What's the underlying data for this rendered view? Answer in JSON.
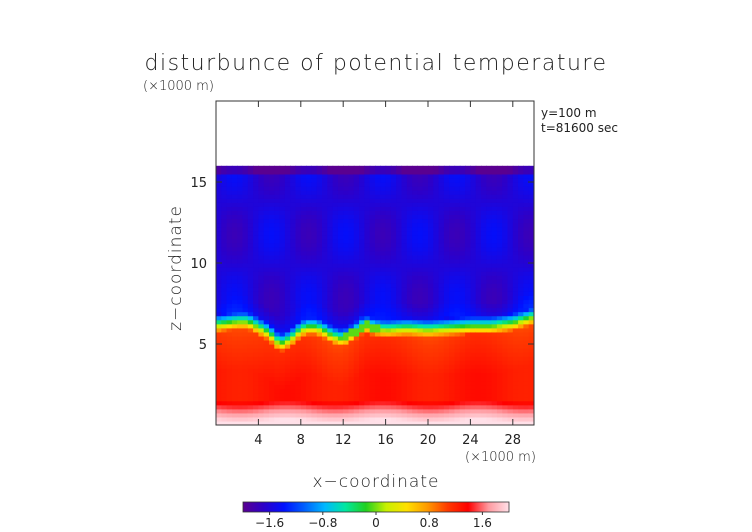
{
  "chart_data": {
    "type": "heatmap",
    "title": "disturbunce of potential temperature",
    "y_scale_note": "(×1000 m)",
    "x_scale_note": "(×1000 m)",
    "xlabel": "x−coordinate",
    "ylabel": "z−coordinate",
    "info_lines": [
      "y=100 m",
      "t=81600 sec"
    ],
    "xlim": [
      0,
      30
    ],
    "ylim": [
      0,
      20
    ],
    "x_ticks": [
      4,
      8,
      12,
      16,
      20,
      24,
      28
    ],
    "x_tick_labels": [
      "4",
      "8",
      "12",
      "16",
      "20",
      "24",
      "28"
    ],
    "y_ticks": [
      5,
      10,
      15
    ],
    "y_tick_labels": [
      "5",
      "10",
      "15"
    ],
    "field_top": 16,
    "boundary_profile": {
      "x": [
        0,
        2,
        3,
        5,
        6,
        7,
        8,
        9,
        10,
        11,
        12,
        13,
        14,
        15,
        16,
        18,
        20,
        22,
        24,
        26,
        28,
        30
      ],
      "z": [
        6.3,
        6.5,
        6.5,
        5.8,
        5.1,
        5.4,
        6.0,
        6.2,
        6.0,
        5.6,
        5.4,
        5.8,
        6.3,
        6.1,
        6.0,
        6.1,
        6.0,
        6.1,
        6.2,
        6.2,
        6.4,
        6.8
      ]
    },
    "colorbar": {
      "range": [
        -2.0,
        2.0
      ],
      "ticks": [
        -1.6,
        -0.8,
        0,
        0.8,
        1.6
      ],
      "tick_labels": [
        "−1.6",
        "−0.8",
        "0",
        "0.8",
        "1.6"
      ],
      "colors": [
        "#5a0090",
        "#2d00c8",
        "#0010ff",
        "#0060ff",
        "#00b8ff",
        "#00e8a0",
        "#20d020",
        "#c8f000",
        "#ffe000",
        "#ff9a00",
        "#ff3a00",
        "#ff0000",
        "#ff9aa0",
        "#ffe0e8"
      ]
    }
  }
}
